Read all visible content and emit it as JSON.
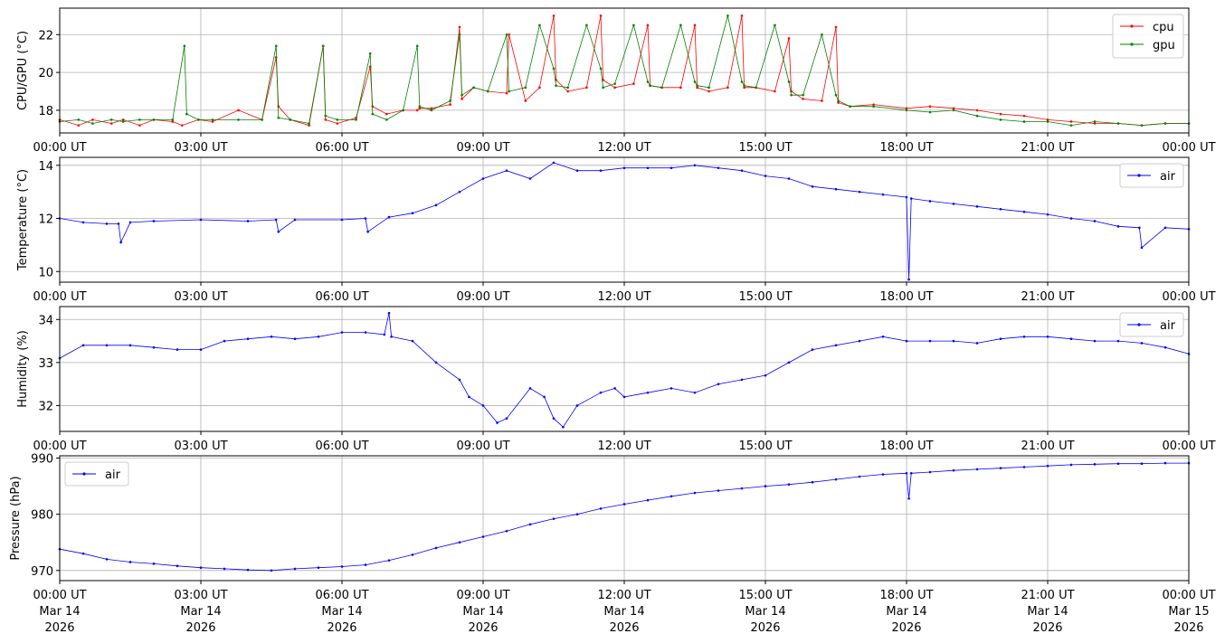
{
  "x_tick_labels": [
    "00:00 UT",
    "03:00 UT",
    "06:00 UT",
    "09:00 UT",
    "12:00 UT",
    "15:00 UT",
    "18:00 UT",
    "21:00 UT",
    "00:00 UT"
  ],
  "x_tick_dates_line2": [
    "Mar 14",
    "Mar 14",
    "Mar 14",
    "Mar 14",
    "Mar 14",
    "Mar 14",
    "Mar 14",
    "Mar 14",
    "Mar 15"
  ],
  "x_tick_dates_line3": [
    "2026",
    "2026",
    "2026",
    "2026",
    "2026",
    "2026",
    "2026",
    "2026",
    "2026"
  ],
  "chart_data": [
    {
      "type": "line",
      "ylabel": "CPU/GPU (°C)",
      "xlim_hours": [
        0,
        24
      ],
      "ylim": [
        16.8,
        23.4
      ],
      "yticks": [
        18,
        20,
        22
      ],
      "grid": true,
      "legend": "top-right",
      "series": [
        {
          "name": "cpu",
          "color": "#ff0000",
          "x_hours": [
            0,
            0.4,
            0.7,
            1.1,
            1.35,
            1.7,
            2.0,
            2.4,
            2.6,
            2.95,
            3.25,
            3.8,
            4.3,
            4.6,
            4.65,
            4.9,
            5.3,
            5.6,
            5.65,
            5.9,
            6.3,
            6.6,
            6.65,
            6.95,
            7.3,
            7.6,
            7.65,
            7.9,
            8.3,
            8.5,
            8.55,
            8.8,
            9.1,
            9.5,
            9.55,
            9.9,
            10.2,
            10.5,
            10.55,
            10.8,
            11.2,
            11.5,
            11.55,
            11.8,
            12.2,
            12.5,
            12.55,
            12.8,
            13.2,
            13.5,
            13.55,
            13.8,
            14.2,
            14.5,
            14.55,
            14.8,
            15.2,
            15.5,
            15.55,
            15.8,
            16.2,
            16.5,
            16.55,
            16.8,
            17.3,
            18.0,
            18.5,
            19.0,
            19.5,
            20.0,
            20.5,
            21.0,
            21.5,
            22.0,
            22.5,
            23.0,
            23.5,
            24.0
          ],
          "values": [
            17.5,
            17.2,
            17.5,
            17.3,
            17.5,
            17.2,
            17.5,
            17.4,
            17.2,
            17.5,
            17.4,
            18.0,
            17.5,
            20.8,
            18.2,
            17.5,
            17.2,
            21.4,
            17.5,
            17.3,
            17.6,
            20.3,
            18.2,
            17.8,
            18.0,
            18.0,
            18.1,
            18.1,
            18.3,
            22.4,
            18.6,
            19.2,
            19.0,
            18.9,
            22.0,
            18.5,
            19.2,
            23.0,
            19.6,
            19.0,
            19.2,
            23.0,
            19.6,
            19.2,
            19.4,
            22.5,
            19.3,
            19.2,
            19.2,
            22.5,
            19.2,
            19.0,
            19.2,
            23.0,
            19.2,
            19.2,
            19.0,
            21.8,
            19.0,
            18.6,
            18.5,
            22.4,
            18.4,
            18.2,
            18.3,
            18.1,
            18.2,
            18.1,
            18.0,
            17.8,
            17.7,
            17.5,
            17.4,
            17.3,
            17.3,
            17.2,
            17.3,
            17.3
          ]
        },
        {
          "name": "gpu",
          "color": "#008000",
          "x_hours": [
            0,
            0.4,
            0.7,
            1.1,
            1.35,
            1.7,
            2.0,
            2.4,
            2.65,
            2.7,
            2.95,
            3.25,
            3.8,
            4.3,
            4.6,
            4.65,
            4.9,
            5.3,
            5.6,
            5.65,
            5.9,
            6.3,
            6.6,
            6.65,
            6.95,
            7.3,
            7.6,
            7.65,
            7.9,
            8.3,
            8.5,
            8.55,
            8.8,
            9.1,
            9.5,
            9.55,
            9.9,
            10.2,
            10.5,
            10.55,
            10.8,
            11.2,
            11.5,
            11.55,
            11.8,
            12.2,
            12.5,
            12.55,
            12.8,
            13.2,
            13.5,
            13.55,
            13.8,
            14.2,
            14.5,
            14.55,
            14.8,
            15.2,
            15.5,
            15.55,
            15.8,
            16.2,
            16.5,
            16.55,
            16.8,
            17.3,
            18.0,
            18.5,
            19.0,
            19.5,
            20.0,
            20.5,
            21.0,
            21.5,
            22.0,
            22.5,
            23.0,
            23.5,
            24.0
          ],
          "values": [
            17.4,
            17.5,
            17.3,
            17.5,
            17.4,
            17.5,
            17.5,
            17.5,
            21.4,
            17.8,
            17.5,
            17.5,
            17.5,
            17.5,
            21.4,
            17.6,
            17.5,
            17.3,
            21.4,
            17.7,
            17.5,
            17.5,
            21.0,
            17.8,
            17.5,
            18.0,
            21.4,
            18.2,
            18.0,
            18.5,
            22.0,
            18.8,
            19.2,
            19.0,
            22.0,
            19.0,
            19.2,
            22.5,
            20.2,
            19.3,
            19.2,
            22.5,
            20.2,
            19.2,
            19.4,
            22.5,
            19.5,
            19.3,
            19.2,
            22.5,
            19.5,
            19.3,
            19.2,
            23.0,
            19.5,
            19.3,
            19.2,
            22.5,
            19.5,
            18.8,
            18.8,
            22.0,
            18.8,
            18.5,
            18.2,
            18.2,
            18.0,
            17.9,
            18.0,
            17.7,
            17.5,
            17.4,
            17.4,
            17.2,
            17.4,
            17.3,
            17.2,
            17.3,
            17.3
          ]
        }
      ]
    },
    {
      "type": "line",
      "ylabel": "Temperature (°C)",
      "xlim_hours": [
        0,
        24
      ],
      "ylim": [
        9.6,
        14.3
      ],
      "yticks": [
        10,
        12,
        14
      ],
      "grid": true,
      "legend": "top-right",
      "series": [
        {
          "name": "air",
          "color": "#0000ff",
          "x_hours": [
            0,
            0.5,
            1.0,
            1.25,
            1.3,
            1.5,
            2.0,
            3.0,
            4.0,
            4.6,
            4.65,
            5.0,
            6.0,
            6.5,
            6.55,
            7.0,
            7.5,
            8.0,
            8.5,
            9.0,
            9.5,
            10.0,
            10.5,
            11.0,
            11.5,
            12.0,
            12.5,
            13.0,
            13.5,
            14.0,
            14.5,
            15.0,
            15.5,
            16.0,
            16.5,
            17.0,
            17.5,
            18.0,
            18.05,
            18.1,
            18.5,
            19.0,
            19.5,
            20.0,
            20.5,
            21.0,
            21.5,
            22.0,
            22.5,
            22.95,
            23.0,
            23.5,
            24.0
          ],
          "values": [
            12.0,
            11.85,
            11.8,
            11.8,
            11.1,
            11.85,
            11.9,
            11.95,
            11.9,
            11.95,
            11.5,
            11.95,
            11.95,
            12.0,
            11.5,
            12.05,
            12.2,
            12.5,
            13.0,
            13.5,
            13.8,
            13.5,
            14.1,
            13.8,
            13.8,
            13.9,
            13.9,
            13.9,
            14.0,
            13.9,
            13.8,
            13.6,
            13.5,
            13.2,
            13.1,
            13.0,
            12.9,
            12.8,
            9.7,
            12.75,
            12.65,
            12.55,
            12.45,
            12.35,
            12.25,
            12.15,
            12.0,
            11.9,
            11.7,
            11.65,
            10.9,
            11.65,
            11.6
          ]
        }
      ]
    },
    {
      "type": "line",
      "ylabel": "Humidity (%)",
      "xlim_hours": [
        0,
        24
      ],
      "ylim": [
        31.4,
        34.3
      ],
      "yticks": [
        32,
        33,
        34
      ],
      "grid": true,
      "legend": "top-right",
      "series": [
        {
          "name": "air",
          "color": "#0000ff",
          "x_hours": [
            0,
            0.5,
            1.0,
            1.5,
            2.0,
            2.5,
            3.0,
            3.5,
            4.0,
            4.5,
            5.0,
            5.5,
            6.0,
            6.5,
            6.9,
            7.0,
            7.05,
            7.5,
            8.0,
            8.5,
            8.7,
            9.0,
            9.3,
            9.5,
            10.0,
            10.3,
            10.5,
            10.7,
            11.0,
            11.5,
            11.8,
            12.0,
            12.5,
            13.0,
            13.5,
            14.0,
            14.5,
            15.0,
            15.5,
            16.0,
            16.5,
            17.0,
            17.5,
            18.0,
            18.5,
            19.0,
            19.5,
            20.0,
            20.5,
            21.0,
            21.5,
            22.0,
            22.5,
            23.0,
            23.5,
            24.0
          ],
          "values": [
            33.1,
            33.4,
            33.4,
            33.4,
            33.35,
            33.3,
            33.3,
            33.5,
            33.55,
            33.6,
            33.55,
            33.6,
            33.7,
            33.7,
            33.65,
            34.15,
            33.6,
            33.5,
            33.0,
            32.6,
            32.2,
            32.0,
            31.6,
            31.7,
            32.4,
            32.2,
            31.7,
            31.5,
            32.0,
            32.3,
            32.4,
            32.2,
            32.3,
            32.4,
            32.3,
            32.5,
            32.6,
            32.7,
            33.0,
            33.3,
            33.4,
            33.5,
            33.6,
            33.5,
            33.5,
            33.5,
            33.45,
            33.55,
            33.6,
            33.6,
            33.55,
            33.5,
            33.5,
            33.45,
            33.35,
            33.2
          ]
        }
      ]
    },
    {
      "type": "line",
      "ylabel": "Pressure (hPa)",
      "xlim_hours": [
        0,
        24
      ],
      "ylim": [
        968.2,
        990.4
      ],
      "yticks": [
        970,
        980,
        990
      ],
      "grid": true,
      "legend": "top-left",
      "series": [
        {
          "name": "air",
          "color": "#0000ff",
          "x_hours": [
            0,
            0.5,
            1.0,
            1.5,
            2.0,
            2.5,
            3.0,
            3.5,
            4.0,
            4.5,
            5.0,
            5.5,
            6.0,
            6.5,
            7.0,
            7.5,
            8.0,
            8.5,
            9.0,
            9.5,
            10.0,
            10.5,
            11.0,
            11.5,
            12.0,
            12.5,
            13.0,
            13.5,
            14.0,
            14.5,
            15.0,
            15.5,
            16.0,
            16.5,
            17.0,
            17.5,
            18.0,
            18.05,
            18.1,
            18.5,
            19.0,
            19.5,
            20.0,
            20.5,
            21.0,
            21.5,
            22.0,
            22.5,
            23.0,
            23.5,
            24.0
          ],
          "values": [
            973.8,
            973.0,
            972.0,
            971.5,
            971.2,
            970.8,
            970.5,
            970.3,
            970.1,
            970.0,
            970.3,
            970.5,
            970.7,
            971.0,
            971.8,
            972.8,
            974.0,
            975.0,
            976.0,
            977.0,
            978.2,
            979.2,
            980.0,
            981.0,
            981.8,
            982.5,
            983.2,
            983.8,
            984.2,
            984.6,
            985.0,
            985.3,
            985.7,
            986.2,
            986.7,
            987.1,
            987.3,
            982.8,
            987.3,
            987.5,
            987.8,
            988.0,
            988.2,
            988.4,
            988.6,
            988.8,
            988.9,
            989.0,
            989.0,
            989.1,
            989.1
          ]
        }
      ]
    }
  ]
}
